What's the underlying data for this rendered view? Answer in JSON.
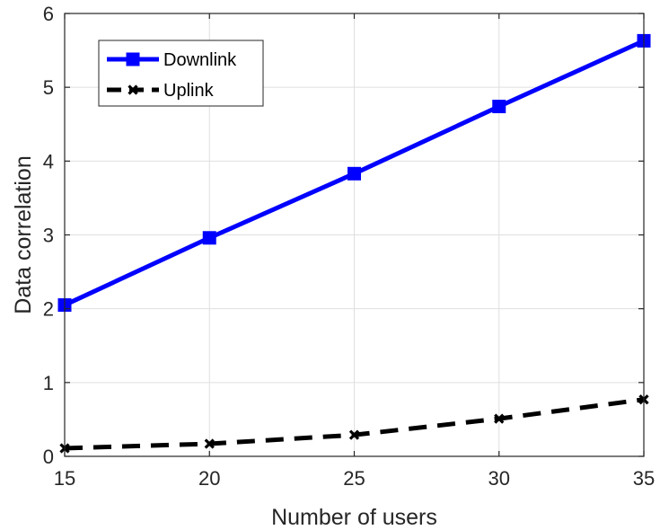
{
  "chart_data": {
    "type": "line",
    "x": [
      15,
      20,
      25,
      30,
      35
    ],
    "xlabel": "Number of users",
    "ylabel": "Data correlation",
    "xlim": [
      15,
      35
    ],
    "ylim": [
      0,
      6
    ],
    "xticks": [
      15,
      20,
      25,
      30,
      35
    ],
    "yticks": [
      0,
      1,
      2,
      3,
      4,
      5,
      6
    ],
    "grid": true,
    "legend": "top-left",
    "series": [
      {
        "name": "Downlink",
        "values": [
          2.05,
          2.96,
          3.83,
          4.74,
          5.63
        ],
        "color": "#0000ff",
        "line_style": "solid",
        "marker": "square"
      },
      {
        "name": "Uplink",
        "values": [
          0.11,
          0.17,
          0.29,
          0.51,
          0.77
        ],
        "color": "#000000",
        "line_style": "dashed",
        "marker": "x"
      }
    ]
  }
}
